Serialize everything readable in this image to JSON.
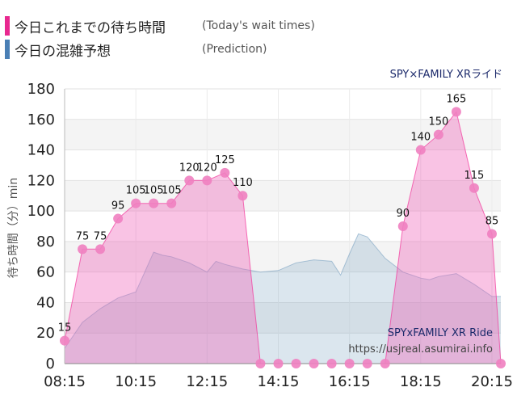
{
  "legend": [
    {
      "label": "今日これまでの待ち時間",
      "sub": "(Today's wait times)",
      "color": "#e8288f"
    },
    {
      "label": "今日の混雑予想",
      "sub": "(Prediction)",
      "color": "#4a7fb5"
    }
  ],
  "chart_data": {
    "type": "area",
    "title": "SPY×FAMILY XRライド",
    "ylabel": "待ち時間（分）min",
    "xlabel": "",
    "ylim": [
      0,
      180
    ],
    "yticks": [
      0,
      20,
      40,
      60,
      80,
      100,
      120,
      140,
      160,
      180
    ],
    "x_tick_labels": [
      "08:15",
      "10:15",
      "12:15",
      "14:15",
      "16:15",
      "18:15",
      "20:15"
    ],
    "grid": true,
    "watermark": [
      "SPYxFAMILY XR Ride",
      "https://usjreal.asumirai.info"
    ],
    "series": [
      {
        "name": "今日これまでの待ち時間",
        "color": "#f2349a",
        "x": [
          "08:15",
          "08:30",
          "08:45",
          "09:00",
          "09:15",
          "09:30",
          "09:45",
          "10:00",
          "10:15",
          "10:30",
          "10:45",
          "11:00",
          "11:15",
          "11:30",
          "11:45",
          "12:00",
          "12:15",
          "12:30",
          "12:45",
          "13:00",
          "13:15",
          "13:30",
          "13:45",
          "14:00",
          "14:15",
          "14:30",
          "14:45",
          "15:00",
          "15:15",
          "15:30",
          "15:45",
          "16:00",
          "16:15",
          "16:30",
          "16:45",
          "17:00",
          "17:15",
          "17:30",
          "17:45",
          "18:00",
          "18:15",
          "18:30",
          "18:45",
          "19:00",
          "19:15",
          "19:30",
          "19:45",
          "20:00",
          "20:15",
          "20:30"
        ],
        "values": [
          15,
          null,
          75,
          null,
          75,
          null,
          95,
          null,
          105,
          null,
          105,
          null,
          105,
          null,
          120,
          null,
          120,
          null,
          125,
          null,
          110,
          null,
          0,
          null,
          0,
          null,
          0,
          null,
          0,
          null,
          0,
          null,
          0,
          null,
          0,
          null,
          0,
          null,
          90,
          null,
          140,
          null,
          150,
          null,
          165,
          null,
          115,
          null,
          85,
          0
        ],
        "labels": [
          15,
          null,
          75,
          null,
          75,
          null,
          95,
          null,
          105,
          null,
          105,
          null,
          105,
          null,
          120,
          null,
          120,
          null,
          125,
          null,
          110,
          null,
          null,
          null,
          null,
          null,
          null,
          null,
          null,
          null,
          null,
          null,
          null,
          null,
          null,
          null,
          null,
          null,
          90,
          null,
          140,
          null,
          150,
          null,
          165,
          null,
          115,
          null,
          85,
          null
        ]
      },
      {
        "name": "今日の混雑予想",
        "color": "#6f9bbd",
        "x": [
          "08:15",
          "08:45",
          "09:15",
          "09:45",
          "10:15",
          "10:30",
          "10:45",
          "11:00",
          "11:15",
          "11:45",
          "12:15",
          "12:30",
          "12:45",
          "13:15",
          "13:45",
          "14:15",
          "14:45",
          "15:15",
          "15:45",
          "16:00",
          "16:15",
          "16:30",
          "16:45",
          "17:15",
          "17:45",
          "18:15",
          "18:30",
          "18:45",
          "19:15",
          "19:45",
          "20:15",
          "20:30"
        ],
        "values": [
          10,
          27,
          36,
          43,
          47,
          60,
          73,
          71,
          70,
          66,
          60,
          67,
          65,
          62,
          60,
          61,
          66,
          68,
          67,
          58,
          72,
          85,
          83,
          69,
          60,
          56,
          55,
          57,
          59,
          52,
          44,
          44
        ]
      }
    ]
  }
}
